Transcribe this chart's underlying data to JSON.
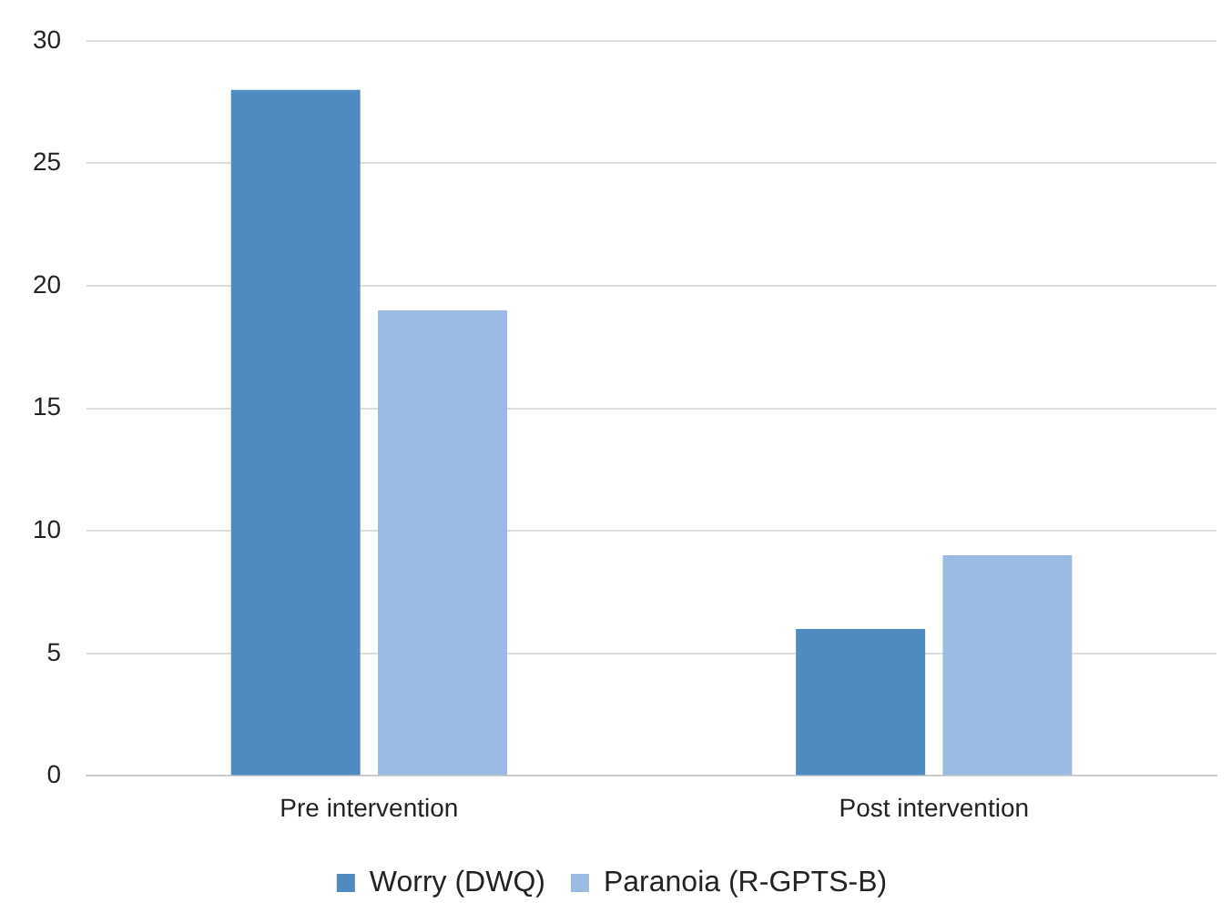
{
  "chart_data": {
    "type": "bar",
    "categories": [
      "Pre intervention",
      "Post intervention"
    ],
    "series": [
      {
        "name": "Worry (DWQ)",
        "color": "#4f8bc0",
        "values": [
          28,
          6
        ]
      },
      {
        "name": "Paranoia (R-GPTS-B)",
        "color": "#9bbbe2",
        "values": [
          19,
          9
        ]
      }
    ],
    "ylim": [
      0,
      30
    ],
    "yticks": [
      0,
      5,
      10,
      15,
      20,
      25,
      30
    ],
    "grid": "y",
    "legend": "bottom"
  }
}
